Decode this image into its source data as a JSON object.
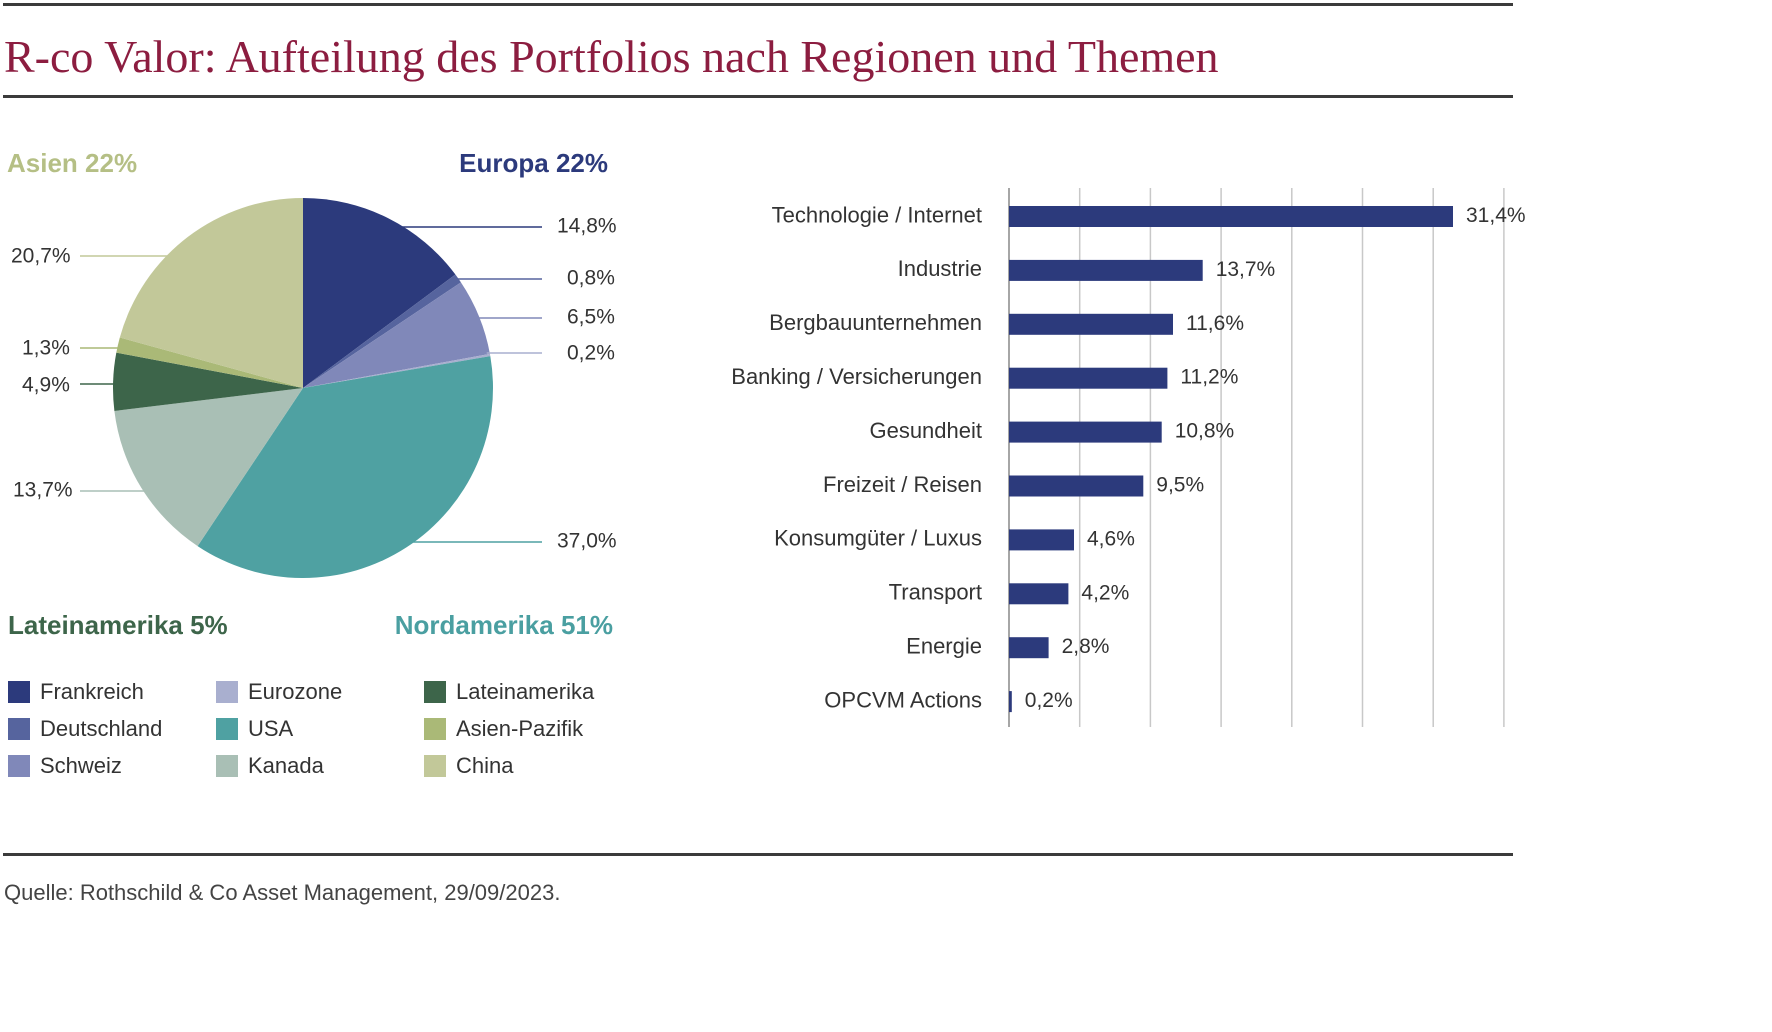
{
  "title": "R-co Valor: Aufteilung des Portfolios nach Regionen und Themen",
  "source": "Quelle: Rothschild & Co Asset Management, 29/09/2023.",
  "chart_data": [
    {
      "type": "pie",
      "region_labels": [
        {
          "text": "Asien 22%",
          "color": "#b5bf85"
        },
        {
          "text": "Europa 22%",
          "color": "#2c3a7c"
        },
        {
          "text": "Lateinamerika 5%",
          "color": "#3d654a"
        },
        {
          "text": "Nordamerika 51%",
          "color": "#4a9fa1"
        }
      ],
      "slices": [
        {
          "name": "Frankreich",
          "value": 14.8,
          "label": "14,8%",
          "color": "#2c3a7c"
        },
        {
          "name": "Deutschland",
          "value": 0.8,
          "label": "0,8%",
          "color": "#56649e"
        },
        {
          "name": "Schweiz",
          "value": 6.5,
          "label": "6,5%",
          "color": "#8088b9"
        },
        {
          "name": "Eurozone",
          "value": 0.2,
          "label": "0,2%",
          "color": "#a9afcf"
        },
        {
          "name": "USA",
          "value": 37.0,
          "label": "37,0%",
          "color": "#4fa1a2"
        },
        {
          "name": "Kanada",
          "value": 13.7,
          "label": "13,7%",
          "color": "#a9bfb5"
        },
        {
          "name": "Lateinamerika",
          "value": 4.9,
          "label": "4,9%",
          "color": "#3d654a"
        },
        {
          "name": "Asien-Pazifik",
          "value": 1.3,
          "label": "1,3%",
          "color": "#aab977"
        },
        {
          "name": "China",
          "value": 20.7,
          "label": "20,7%",
          "color": "#c2c899"
        }
      ]
    },
    {
      "type": "bar",
      "orientation": "horizontal",
      "categories": [
        "Technologie / Internet",
        "Industrie",
        "Bergbauunternehmen",
        "Banking / Versicherungen",
        "Gesundheit",
        "Freizeit / Reisen",
        "Konsumgüter / Luxus",
        "Transport",
        "Energie",
        "OPCVM Actions"
      ],
      "values": [
        31.4,
        13.7,
        11.6,
        11.2,
        10.8,
        9.5,
        4.6,
        4.2,
        2.8,
        0.2
      ],
      "value_labels": [
        "31,4%",
        "13,7%",
        "11,6%",
        "11,2%",
        "10,8%",
        "9,5%",
        "4,6%",
        "4,2%",
        "2,8%",
        "0,2%"
      ],
      "xlim": [
        0,
        35
      ],
      "gridline_step": 5,
      "grid": true,
      "bar_color": "#2c3a7c"
    }
  ]
}
